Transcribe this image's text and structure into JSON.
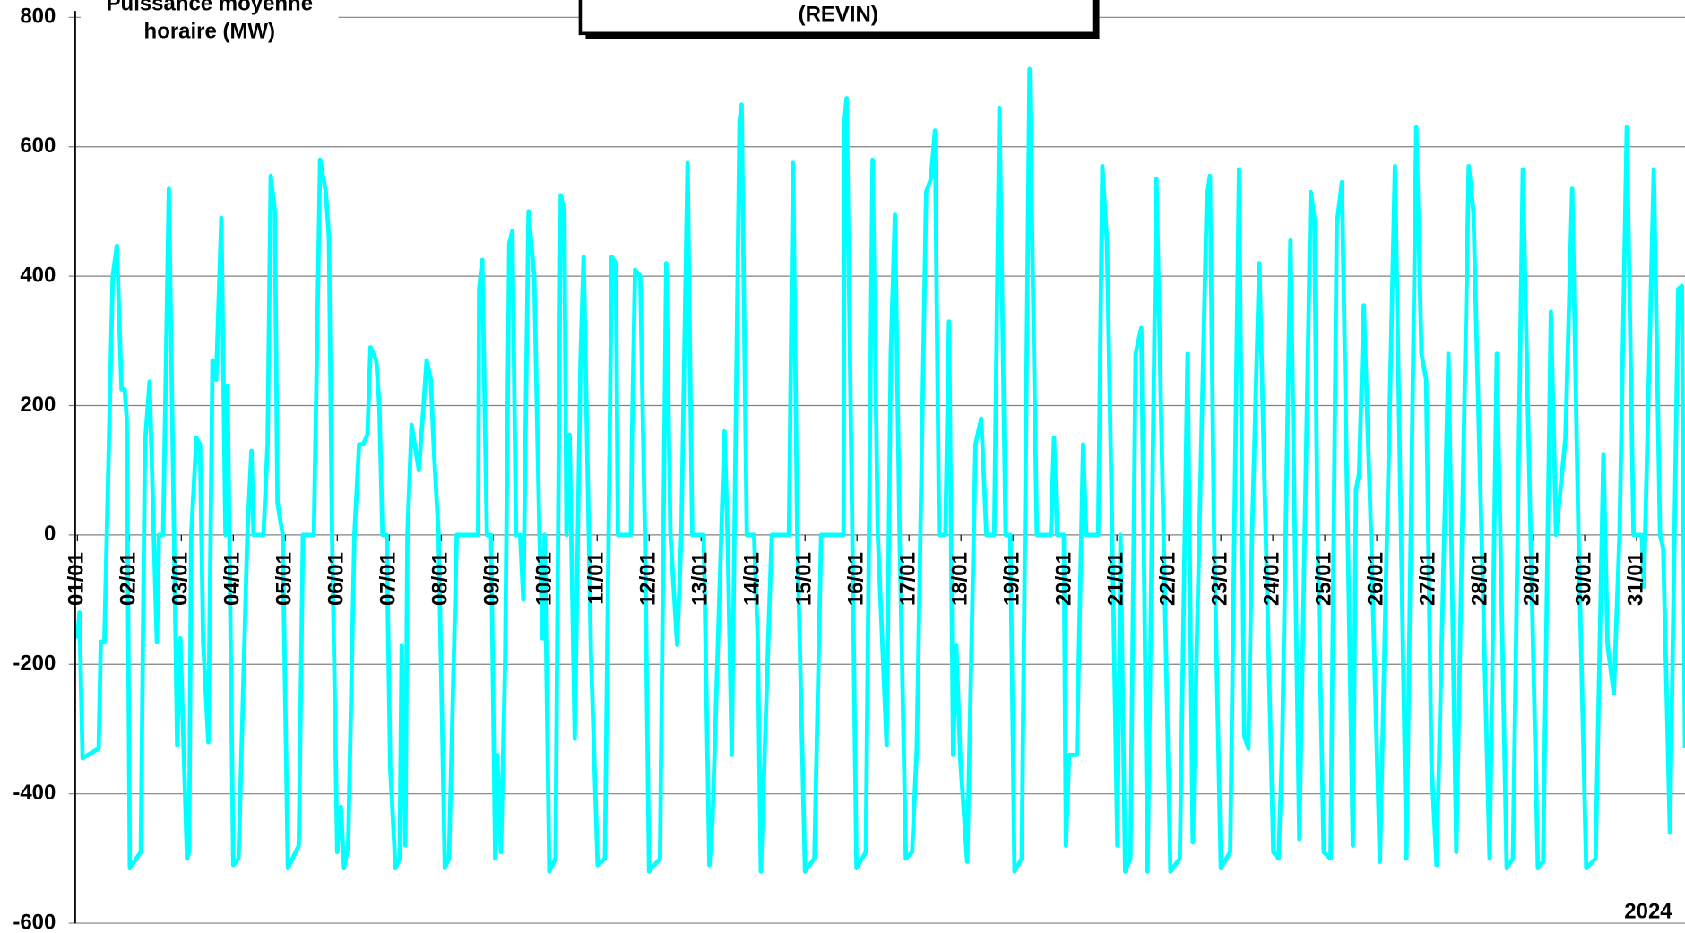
{
  "chart_data": {
    "type": "line",
    "title": "(REVIN)",
    "y_label": [
      "Puissance moyenne",
      "horaire (MW)"
    ],
    "annotation": "2024",
    "color": "#00ffff",
    "xlim": [
      1,
      31.93
    ],
    "ylim": [
      -600,
      800
    ],
    "yticks": [
      -600,
      -400,
      -200,
      0,
      200,
      400,
      600,
      800
    ],
    "grid": true,
    "xticks": [
      {
        "value": 1,
        "label": "01/01"
      },
      {
        "value": 2,
        "label": "02/01"
      },
      {
        "value": 3,
        "label": "03/01"
      },
      {
        "value": 4,
        "label": "04/01"
      },
      {
        "value": 5,
        "label": "05/01"
      },
      {
        "value": 6,
        "label": "06/01"
      },
      {
        "value": 7,
        "label": "07/01"
      },
      {
        "value": 8,
        "label": "08/01"
      },
      {
        "value": 9,
        "label": "09/01"
      },
      {
        "value": 10,
        "label": "10/01"
      },
      {
        "value": 11,
        "label": "11/01"
      },
      {
        "value": 12,
        "label": "12/01"
      },
      {
        "value": 13,
        "label": "13/01"
      },
      {
        "value": 14,
        "label": "14/01"
      },
      {
        "value": 15,
        "label": "15/01"
      },
      {
        "value": 16,
        "label": "16/01"
      },
      {
        "value": 17,
        "label": "17/01"
      },
      {
        "value": 18,
        "label": "18/01"
      },
      {
        "value": 19,
        "label": "19/01"
      },
      {
        "value": 20,
        "label": "20/01"
      },
      {
        "value": 21,
        "label": "21/01"
      },
      {
        "value": 22,
        "label": "22/01"
      },
      {
        "value": 23,
        "label": "23/01"
      },
      {
        "value": 24,
        "label": "24/01"
      },
      {
        "value": 25,
        "label": "25/01"
      },
      {
        "value": 26,
        "label": "26/01"
      },
      {
        "value": 27,
        "label": "27/01"
      },
      {
        "value": 28,
        "label": "28/01"
      },
      {
        "value": 29,
        "label": "29/01"
      },
      {
        "value": 30,
        "label": "30/01"
      },
      {
        "value": 31,
        "label": "31/01"
      }
    ],
    "x": [
      1.0,
      1.04,
      1.1,
      1.41,
      1.45,
      1.52,
      1.58,
      1.68,
      1.76,
      1.85,
      1.91,
      1.95,
      2.01,
      2.22,
      2.3,
      2.39,
      2.47,
      2.53,
      2.57,
      2.65,
      2.76,
      2.86,
      2.92,
      2.98,
      3.11,
      3.15,
      3.19,
      3.29,
      3.36,
      3.42,
      3.52,
      3.6,
      3.67,
      3.77,
      3.85,
      3.89,
      4.0,
      4.1,
      4.16,
      4.27,
      4.35,
      4.39,
      4.58,
      4.66,
      4.72,
      4.8,
      4.85,
      4.95,
      5.05,
      5.26,
      5.34,
      5.55,
      5.67,
      5.78,
      5.84,
      5.9,
      6.0,
      6.07,
      6.13,
      6.21,
      6.33,
      6.42,
      6.5,
      6.58,
      6.64,
      6.75,
      6.81,
      6.87,
      6.95,
      7.02,
      7.12,
      7.2,
      7.24,
      7.31,
      7.35,
      7.43,
      7.57,
      7.66,
      7.72,
      7.8,
      7.86,
      7.95,
      8.07,
      8.15,
      8.3,
      8.71,
      8.73,
      8.79,
      8.88,
      8.96,
      9.04,
      9.08,
      9.15,
      9.23,
      9.31,
      9.37,
      9.44,
      9.52,
      9.58,
      9.68,
      9.79,
      9.89,
      9.95,
      9.99,
      10.08,
      10.2,
      10.3,
      10.37,
      10.41,
      10.47,
      10.57,
      10.68,
      10.74,
      10.84,
      10.88,
      11.01,
      11.15,
      11.28,
      11.36,
      11.4,
      11.65,
      11.67,
      11.73,
      11.83,
      11.92,
      12.0,
      12.21,
      12.33,
      12.41,
      12.54,
      12.62,
      12.74,
      12.83,
      13.05,
      13.16,
      13.22,
      13.45,
      13.51,
      13.59,
      13.74,
      13.78,
      13.88,
      14.02,
      14.09,
      14.15,
      14.29,
      14.36,
      14.69,
      14.77,
      14.85,
      15.0,
      15.18,
      15.31,
      15.74,
      15.76,
      15.8,
      15.91,
      15.99,
      16.17,
      16.3,
      16.4,
      16.57,
      16.65,
      16.73,
      16.82,
      16.94,
      17.06,
      17.15,
      17.33,
      17.42,
      17.5,
      17.58,
      17.7,
      17.77,
      17.85,
      17.91,
      17.99,
      18.12,
      18.28,
      18.39,
      18.49,
      18.64,
      18.74,
      18.86,
      18.95,
      19.03,
      19.17,
      19.32,
      19.46,
      19.73,
      19.79,
      19.85,
      19.98,
      20.02,
      20.08,
      20.23,
      20.35,
      20.41,
      20.64,
      20.72,
      20.81,
      20.91,
      21.01,
      21.07,
      21.16,
      21.26,
      21.36,
      21.47,
      21.59,
      21.76,
      21.86,
      22.03,
      22.21,
      22.36,
      22.46,
      22.54,
      22.73,
      22.79,
      22.87,
      23.0,
      23.18,
      23.35,
      23.45,
      23.53,
      23.6,
      23.74,
      24.01,
      24.11,
      24.18,
      24.34,
      24.51,
      24.73,
      24.8,
      24.86,
      24.98,
      25.11,
      25.23,
      25.33,
      25.54,
      25.6,
      25.66,
      25.75,
      25.89,
      26.06,
      26.35,
      26.57,
      26.76,
      26.86,
      26.95,
      27.05,
      27.15,
      27.38,
      27.53,
      27.77,
      27.86,
      28.17,
      28.31,
      28.5,
      28.62,
      28.81,
      28.89,
      29.1,
      29.2,
      29.35,
      29.45,
      29.63,
      29.76,
      29.88,
      30.03,
      30.21,
      30.36,
      30.44,
      30.56,
      30.67,
      30.81,
      30.94,
      31.1,
      31.14,
      31.33,
      31.45,
      31.51,
      31.64,
      31.8,
      31.87,
      31.93
    ],
    "values": [
      -160,
      -120,
      -345,
      -330,
      -165,
      -165,
      50,
      400,
      447,
      225,
      225,
      180,
      -515,
      -490,
      140,
      237,
      0,
      -165,
      0,
      0,
      535,
      0,
      -325,
      -160,
      -500,
      -490,
      0,
      150,
      140,
      -165,
      -320,
      270,
      240,
      490,
      0,
      230,
      -510,
      -500,
      -330,
      0,
      130,
      0,
      0,
      140,
      555,
      500,
      50,
      0,
      -515,
      -480,
      0,
      0,
      580,
      530,
      460,
      0,
      -490,
      -420,
      -515,
      -480,
      0,
      140,
      140,
      155,
      290,
      270,
      200,
      0,
      0,
      -360,
      -515,
      -500,
      -170,
      -480,
      0,
      170,
      100,
      200,
      270,
      240,
      130,
      0,
      -515,
      -500,
      0,
      0,
      380,
      425,
      0,
      0,
      -500,
      -340,
      -490,
      -200,
      450,
      470,
      0,
      0,
      -100,
      500,
      400,
      0,
      -160,
      0,
      -520,
      -500,
      525,
      500,
      0,
      155,
      -315,
      270,
      430,
      0,
      -180,
      -510,
      -500,
      430,
      420,
      0,
      0,
      145,
      410,
      400,
      0,
      -520,
      -500,
      420,
      0,
      -170,
      0,
      575,
      0,
      0,
      -510,
      -440,
      160,
      0,
      -340,
      640,
      665,
      0,
      0,
      -160,
      -520,
      -170,
      0,
      0,
      575,
      0,
      -520,
      -500,
      0,
      0,
      640,
      675,
      0,
      -515,
      -490,
      580,
      0,
      -325,
      280,
      495,
      0,
      -500,
      -490,
      -330,
      530,
      550,
      625,
      0,
      0,
      330,
      -340,
      -170,
      -350,
      -505,
      140,
      180,
      0,
      0,
      660,
      0,
      0,
      -520,
      -500,
      720,
      0,
      0,
      150,
      0,
      0,
      -480,
      -340,
      -340,
      140,
      0,
      0,
      570,
      450,
      0,
      -480,
      0,
      -520,
      -500,
      280,
      320,
      -520,
      550,
      150,
      -520,
      -500,
      280,
      -475,
      -160,
      520,
      555,
      0,
      -515,
      -490,
      565,
      -310,
      -330,
      0,
      420,
      -490,
      -500,
      -330,
      455,
      -470,
      530,
      490,
      0,
      -490,
      -500,
      480,
      545,
      -480,
      70,
      95,
      355,
      0,
      -505,
      570,
      -500,
      630,
      280,
      240,
      -350,
      -510,
      280,
      -490,
      570,
      500,
      -500,
      280,
      -515,
      -500,
      565,
      260,
      -515,
      -505,
      345,
      0,
      150,
      535,
      0,
      -515,
      -500,
      125,
      -170,
      -245,
      0,
      630,
      0,
      0,
      -80,
      565,
      0,
      -20,
      -460,
      380,
      385,
      -330
    ]
  }
}
